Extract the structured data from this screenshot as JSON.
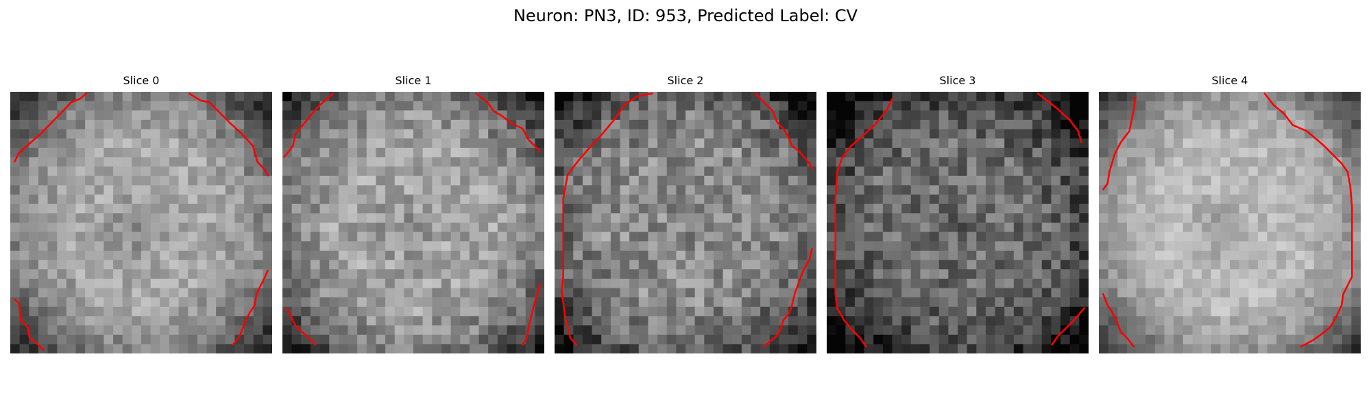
{
  "figure": {
    "title": "Neuron: PN3, ID: 953, Predicted Label: CV"
  },
  "colors": {
    "background": "#ffffff",
    "contour": "#ff0000",
    "text": "#000000"
  },
  "panels": [
    {
      "title": "Slice 0",
      "brightness": 0.66,
      "variability": 0.11,
      "center_dark": 0.14
    },
    {
      "title": "Slice 1",
      "brightness": 0.64,
      "variability": 0.14,
      "center_dark": 0.08
    },
    {
      "title": "Slice 2",
      "brightness": 0.55,
      "variability": 0.16,
      "center_dark": 0.02
    },
    {
      "title": "Slice 3",
      "brightness": 0.43,
      "variability": 0.16,
      "center_dark": 0.06
    },
    {
      "title": "Slice 4",
      "brightness": 0.73,
      "variability": 0.09,
      "center_dark": 0.14
    }
  ]
}
